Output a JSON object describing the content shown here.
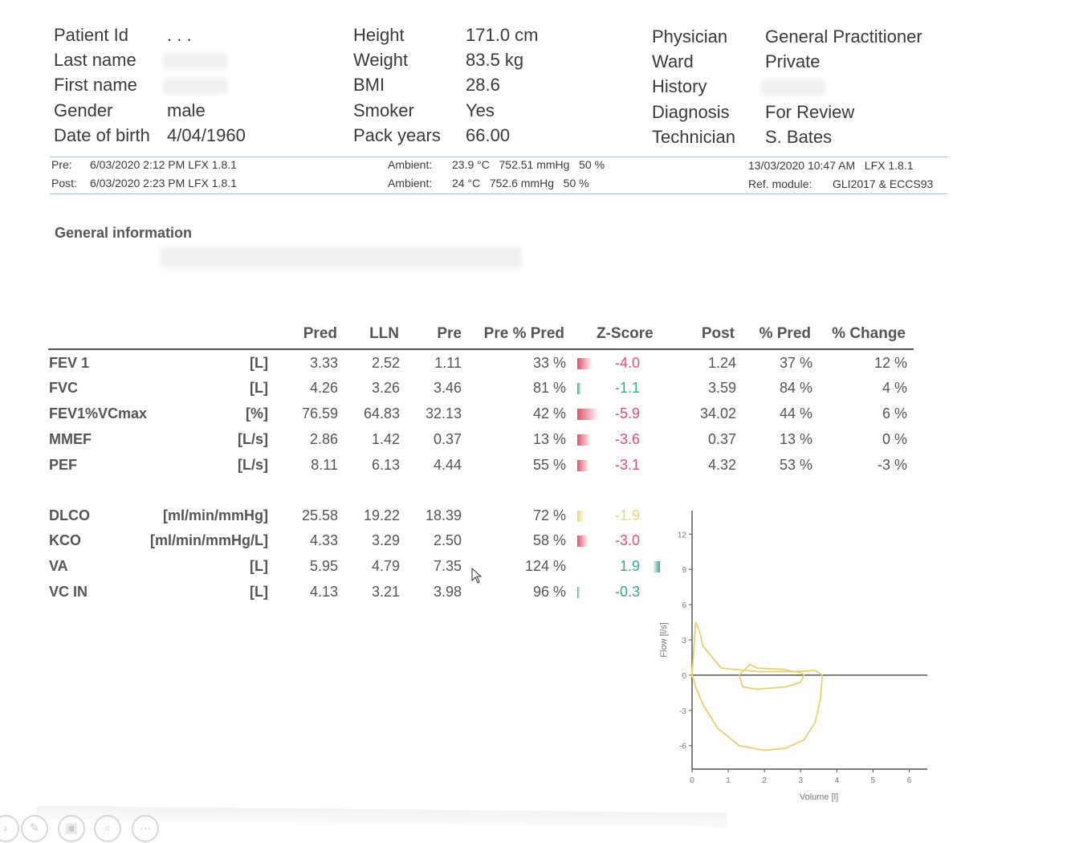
{
  "patient": {
    "col1": [
      {
        "label": "Patient Id",
        "value": ". . ."
      },
      {
        "label": "Last name",
        "value": ""
      },
      {
        "label": "First name",
        "value": ""
      },
      {
        "label": "Gender",
        "value": "male"
      },
      {
        "label": "Date of birth",
        "value": "4/04/1960"
      }
    ],
    "col2": [
      {
        "label": "Height",
        "value": "171.0 cm"
      },
      {
        "label": "Weight",
        "value": "83.5 kg"
      },
      {
        "label": "BMI",
        "value": "28.6"
      },
      {
        "label": "Smoker",
        "value": "Yes"
      },
      {
        "label": "Pack years",
        "value": "66.00"
      }
    ],
    "col3": [
      {
        "label": "Physician",
        "value": "General Practitioner"
      },
      {
        "label": "Ward",
        "value": "Private"
      },
      {
        "label": "History",
        "value": ""
      },
      {
        "label": "Diagnosis",
        "value": "For Review"
      },
      {
        "label": "Technician",
        "value": "S. Bates"
      }
    ]
  },
  "session": {
    "pre_label": "Pre:",
    "pre_value": "6/03/2020 2:12 PM LFX 1.8.1",
    "post_label": "Post:",
    "post_value": "6/03/2020 2:23 PM LFX 1.8.1",
    "ambient_label": "Ambient:",
    "ambient_pre": "23.9 °C   752.51 mmHg   50 %",
    "ambient_post": "24 °C   752.6 mmHg   50 %",
    "report_date": "13/03/2020 10:47 AM   LFX 1.8.1",
    "ref_label": "Ref. module:",
    "ref_value": "GLI2017 & ECCS93"
  },
  "section_title": "General information",
  "table": {
    "headers": [
      "Pred",
      "LLN",
      "Pre",
      "Pre % Pred",
      "Z-Score",
      "Post",
      "% Pred",
      "% Change"
    ],
    "rows": [
      {
        "name": "FEV 1",
        "unit": "[L]",
        "pred": "3.33",
        "lln": "2.52",
        "pre": "1.11",
        "prepct": "33 %",
        "z": "-4.0",
        "zcolor": "#e05070",
        "zlevel": 0.67,
        "post": "1.24",
        "postpct": "37 %",
        "change": "12 %"
      },
      {
        "name": "FVC",
        "unit": "[L]",
        "pred": "4.26",
        "lln": "3.26",
        "pre": "3.46",
        "prepct": "81 %",
        "z": "-1.1",
        "zcolor": "#3aaa80",
        "zlevel": 0.18,
        "post": "3.59",
        "postpct": "84 %",
        "change": "4 %"
      },
      {
        "name": "FEV1%VCmax",
        "unit": "[%]",
        "pred": "76.59",
        "lln": "64.83",
        "pre": "32.13",
        "prepct": "42 %",
        "z": "-5.9",
        "zcolor": "#e05070",
        "zlevel": 0.98,
        "post": "34.02",
        "postpct": "44 %",
        "change": "6 %"
      },
      {
        "name": "MMEF",
        "unit": "[L/s]",
        "pred": "2.86",
        "lln": "1.42",
        "pre": "0.37",
        "prepct": "13 %",
        "z": "-3.6",
        "zcolor": "#e05070",
        "zlevel": 0.6,
        "post": "0.37",
        "postpct": "13 %",
        "change": "0 %"
      },
      {
        "name": "PEF",
        "unit": "[L/s]",
        "pred": "8.11",
        "lln": "6.13",
        "pre": "4.44",
        "prepct": "55 %",
        "z": "-3.1",
        "zcolor": "#e05070",
        "zlevel": 0.52,
        "post": "4.32",
        "postpct": "53 %",
        "change": "-3 %"
      }
    ],
    "rows2": [
      {
        "name": "DLCO",
        "unit": "[ml/min/mmHg]",
        "pred": "25.58",
        "lln": "19.22",
        "pre": "18.39",
        "prepct": "72 %",
        "z": "-1.9",
        "zcolor": "#e8d878",
        "zlevel": 0.32
      },
      {
        "name": "KCO",
        "unit": "[ml/min/mmHg/L]",
        "pred": "4.33",
        "lln": "3.29",
        "pre": "2.50",
        "prepct": "58 %",
        "z": "-3.0",
        "zcolor": "#e05070",
        "zlevel": 0.5
      },
      {
        "name": "VA",
        "unit": "[L]",
        "pred": "5.95",
        "lln": "4.79",
        "pre": "7.35",
        "prepct": "124 %",
        "z": "1.9",
        "zcolor": "#3aaa80",
        "zlevel": 0.32
      },
      {
        "name": "VC IN",
        "unit": "[L]",
        "pred": "4.13",
        "lln": "3.21",
        "pre": "3.98",
        "prepct": "96 %",
        "z": "-0.3",
        "zcolor": "#3aaa80",
        "zlevel": 0.05
      }
    ]
  },
  "chart_data": {
    "type": "line",
    "xlabel": "Volume [l]",
    "ylabel": "Flow [l/s]",
    "xlim": [
      0,
      6.5
    ],
    "ylim": [
      -8,
      14
    ],
    "xticks": [
      "0",
      "1",
      "2",
      "3",
      "4",
      "5",
      "6"
    ],
    "yticks": [
      "12",
      "9",
      "6",
      "3",
      "0",
      "-3",
      "-6"
    ],
    "series": [
      {
        "color": "#e8d070",
        "x": [
          0,
          0.1,
          0.2,
          0.3,
          0.8,
          1.8,
          2.8,
          3.4,
          3.5,
          3.6,
          3.55,
          3.4,
          3.1,
          2.6,
          2.0,
          1.3,
          0.7,
          0.3,
          0.1,
          0
        ],
        "y": [
          0,
          4.5,
          3.8,
          2.5,
          0.6,
          0.3,
          0.3,
          0.4,
          0.2,
          0,
          -2,
          -4,
          -5.5,
          -6.2,
          -6.4,
          -6,
          -4.5,
          -2.5,
          -1,
          0
        ]
      },
      {
        "color": "#e8d070",
        "x": [
          1.3,
          1.6,
          1.8,
          2.5,
          3.0,
          3.1,
          3.0,
          2.6,
          1.8,
          1.4,
          1.3
        ],
        "y": [
          0,
          0.9,
          0.6,
          0.5,
          0.2,
          0,
          -0.6,
          -1.0,
          -1.2,
          -1.0,
          0
        ]
      }
    ]
  },
  "toolbar": [
    "arrow-icon",
    "pen-icon",
    "copy-icon",
    "zoom-icon",
    "more-icon"
  ]
}
